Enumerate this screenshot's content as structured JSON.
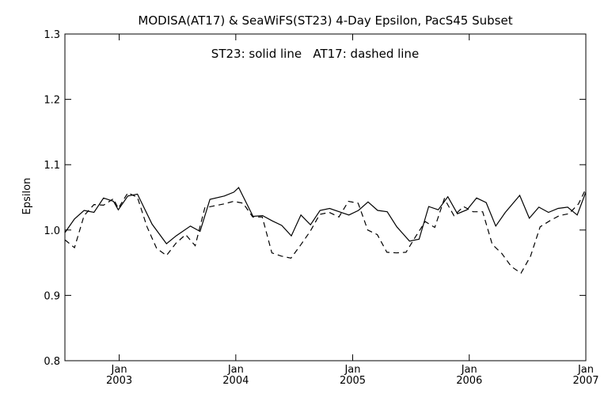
{
  "chart_data": {
    "type": "line",
    "title": "MODISA(AT17) & SeaWiFS(ST23) 4-Day Epsilon, PacS45 Subset",
    "annotation": "ST23: solid line   AT17: dashed line",
    "xlabel": "",
    "ylabel": "Epsilon",
    "xlim": [
      "2002-07-15",
      "2007-01-01"
    ],
    "ylim": [
      0.8,
      1.3
    ],
    "y_ticks": [
      "0.8",
      "0.9",
      "1.0",
      "1.1",
      "1.2",
      "1.3"
    ],
    "x_ticks": [
      {
        "top": "Jan",
        "bottom": "2003",
        "date": "2003-01-01"
      },
      {
        "top": "Jan",
        "bottom": "2004",
        "date": "2004-01-01"
      },
      {
        "top": "Jan",
        "bottom": "2005",
        "date": "2005-01-01"
      },
      {
        "top": "Jan",
        "bottom": "2006",
        "date": "2006-01-01"
      },
      {
        "top": "Jan",
        "bottom": "2007",
        "date": "2007-01-01"
      }
    ],
    "grid": false,
    "series": [
      {
        "name": "ST23",
        "line_style": "solid",
        "color": "#000000",
        "points": [
          [
            "2002-07-15",
            0.996
          ],
          [
            "2002-08-14",
            1.017
          ],
          [
            "2002-09-13",
            1.03
          ],
          [
            "2002-10-14",
            1.027
          ],
          [
            "2002-11-13",
            1.049
          ],
          [
            "2002-12-14",
            1.044
          ],
          [
            "2002-12-29",
            1.031
          ],
          [
            "2003-01-28",
            1.052
          ],
          [
            "2003-02-27",
            1.055
          ],
          [
            "2003-04-14",
            1.009
          ],
          [
            "2003-05-29",
            0.979
          ],
          [
            "2003-06-28",
            0.991
          ],
          [
            "2003-08-12",
            1.006
          ],
          [
            "2003-09-11",
            0.998
          ],
          [
            "2003-10-12",
            1.047
          ],
          [
            "2003-11-26",
            1.052
          ],
          [
            "2003-12-26",
            1.058
          ],
          [
            "2004-01-10",
            1.065
          ],
          [
            "2004-02-24",
            1.021
          ],
          [
            "2004-03-25",
            1.022
          ],
          [
            "2004-04-24",
            1.014
          ],
          [
            "2004-05-24",
            1.007
          ],
          [
            "2004-06-23",
            0.991
          ],
          [
            "2004-07-23",
            1.023
          ],
          [
            "2004-08-22",
            1.008
          ],
          [
            "2004-09-21",
            1.03
          ],
          [
            "2004-10-21",
            1.033
          ],
          [
            "2004-11-20",
            1.028
          ],
          [
            "2004-12-20",
            1.023
          ],
          [
            "2005-01-19",
            1.03
          ],
          [
            "2005-02-18",
            1.043
          ],
          [
            "2005-03-20",
            1.03
          ],
          [
            "2005-04-19",
            1.028
          ],
          [
            "2005-05-19",
            1.005
          ],
          [
            "2005-06-28",
            0.983
          ],
          [
            "2005-07-28",
            0.986
          ],
          [
            "2005-08-27",
            1.036
          ],
          [
            "2005-09-26",
            1.031
          ],
          [
            "2005-10-26",
            1.051
          ],
          [
            "2005-11-25",
            1.025
          ],
          [
            "2005-12-25",
            1.031
          ],
          [
            "2006-01-24",
            1.049
          ],
          [
            "2006-02-23",
            1.042
          ],
          [
            "2006-03-25",
            1.006
          ],
          [
            "2006-04-24",
            1.027
          ],
          [
            "2006-06-08",
            1.053
          ],
          [
            "2006-07-08",
            1.018
          ],
          [
            "2006-08-07",
            1.035
          ],
          [
            "2006-09-06",
            1.027
          ],
          [
            "2006-10-06",
            1.033
          ],
          [
            "2006-11-05",
            1.035
          ],
          [
            "2006-12-05",
            1.023
          ],
          [
            "2007-01-04",
            1.062
          ]
        ]
      },
      {
        "name": "AT17",
        "line_style": "dashed",
        "color": "#000000",
        "points": [
          [
            "2002-07-15",
            0.985
          ],
          [
            "2002-08-14",
            0.973
          ],
          [
            "2002-09-13",
            1.022
          ],
          [
            "2002-10-14",
            1.039
          ],
          [
            "2002-11-13",
            1.038
          ],
          [
            "2002-12-14",
            1.048
          ],
          [
            "2002-12-29",
            1.033
          ],
          [
            "2003-01-28",
            1.057
          ],
          [
            "2003-02-27",
            1.05
          ],
          [
            "2003-03-29",
            1.005
          ],
          [
            "2003-04-28",
            0.972
          ],
          [
            "2003-05-29",
            0.961
          ],
          [
            "2003-06-28",
            0.98
          ],
          [
            "2003-07-28",
            0.993
          ],
          [
            "2003-08-27",
            0.976
          ],
          [
            "2003-09-26",
            1.034
          ],
          [
            "2003-10-26",
            1.037
          ],
          [
            "2003-11-25",
            1.04
          ],
          [
            "2003-12-25",
            1.044
          ],
          [
            "2004-01-24",
            1.041
          ],
          [
            "2004-02-23",
            1.02
          ],
          [
            "2004-03-24",
            1.02
          ],
          [
            "2004-04-23",
            0.965
          ],
          [
            "2004-05-23",
            0.96
          ],
          [
            "2004-06-22",
            0.957
          ],
          [
            "2004-07-22",
            0.977
          ],
          [
            "2004-08-21",
            0.998
          ],
          [
            "2004-09-20",
            1.024
          ],
          [
            "2004-10-20",
            1.027
          ],
          [
            "2004-11-19",
            1.02
          ],
          [
            "2004-12-19",
            1.044
          ],
          [
            "2005-01-18",
            1.041
          ],
          [
            "2005-02-17",
            1.0
          ],
          [
            "2005-03-19",
            0.993
          ],
          [
            "2005-04-18",
            0.966
          ],
          [
            "2005-05-18",
            0.965
          ],
          [
            "2005-06-17",
            0.966
          ],
          [
            "2005-07-17",
            0.99
          ],
          [
            "2005-08-16",
            1.013
          ],
          [
            "2005-09-15",
            1.004
          ],
          [
            "2005-10-15",
            1.048
          ],
          [
            "2005-11-14",
            1.022
          ],
          [
            "2005-12-14",
            1.036
          ],
          [
            "2006-01-13",
            1.028
          ],
          [
            "2006-02-12",
            1.028
          ],
          [
            "2006-03-14",
            0.978
          ],
          [
            "2006-04-13",
            0.964
          ],
          [
            "2006-05-13",
            0.944
          ],
          [
            "2006-06-12",
            0.934
          ],
          [
            "2006-07-12",
            0.96
          ],
          [
            "2006-08-11",
            1.005
          ],
          [
            "2006-09-10",
            1.014
          ],
          [
            "2006-10-10",
            1.022
          ],
          [
            "2006-11-09",
            1.025
          ],
          [
            "2006-12-09",
            1.04
          ],
          [
            "2007-01-04",
            1.066
          ]
        ]
      }
    ]
  }
}
